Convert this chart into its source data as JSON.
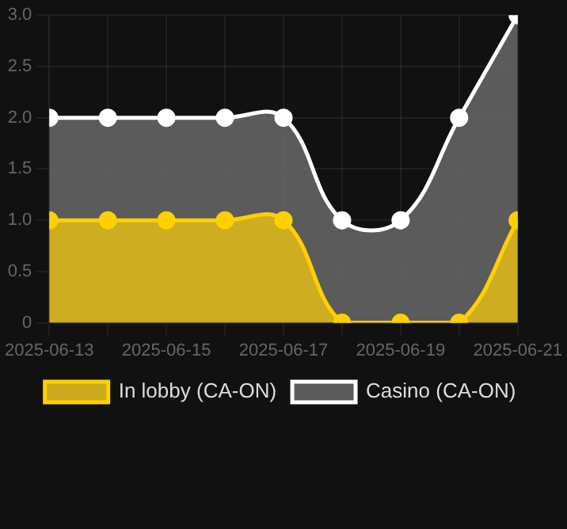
{
  "chart_data": {
    "type": "area",
    "x": [
      "2025-06-13",
      "2025-06-14",
      "2025-06-15",
      "2025-06-16",
      "2025-06-17",
      "2025-06-18",
      "2025-06-19",
      "2025-06-20",
      "2025-06-21"
    ],
    "series": [
      {
        "name": "In lobby (CA-ON)",
        "color": "#ffd000",
        "values": [
          1,
          1,
          1,
          1,
          1,
          0,
          0,
          0,
          1
        ]
      },
      {
        "name": "Casino (CA-ON)",
        "color": "#ffffff",
        "values": [
          2,
          2,
          2,
          2,
          2,
          1,
          1,
          2,
          3
        ]
      }
    ],
    "xlim": [
      "2025-06-13",
      "2025-06-21"
    ],
    "xticks": [
      "2025-06-13",
      {
        "value": "2025-06-14",
        "label": null
      },
      "2025-06-15",
      {
        "value": "2025-06-16",
        "label": null
      },
      "2025-06-17",
      {
        "value": "2025-06-18",
        "label": null
      },
      "2025-06-19",
      {
        "value": "2025-06-20",
        "label": null
      },
      "2025-06-21"
    ],
    "ylim": [
      0,
      3
    ],
    "yticks": [
      0,
      0.5,
      {
        "value": 1,
        "label": "1.0"
      },
      1.5,
      {
        "value": 2,
        "label": "2.0"
      },
      2.5,
      {
        "value": 3,
        "label": "3.0"
      }
    ],
    "grid": true,
    "legend": "bottom",
    "marker": "circle",
    "line_style": "solid"
  }
}
